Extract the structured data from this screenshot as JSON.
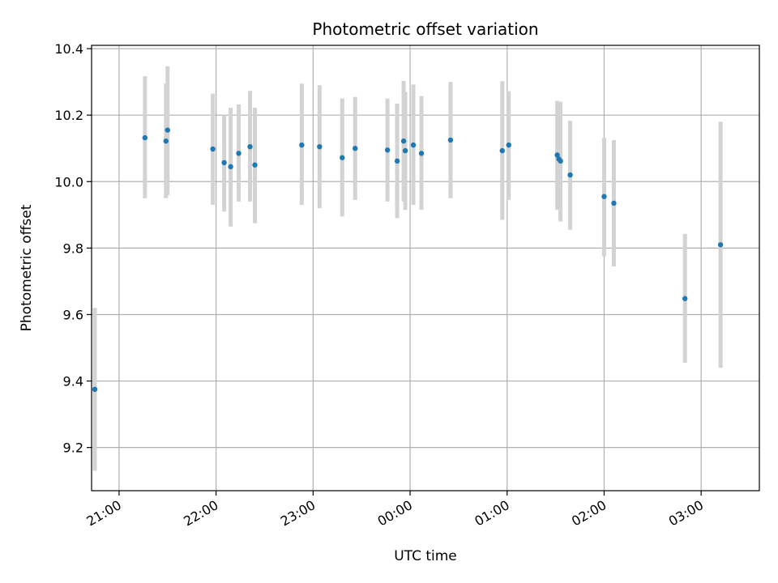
{
  "chart_data": {
    "type": "scatter",
    "title": "Photometric offset variation",
    "xlabel": "UTC time",
    "ylabel": "Photometric offset",
    "xlim": [
      "20:43",
      "03:36"
    ],
    "ylim": [
      9.07,
      10.41
    ],
    "xticks": [
      "21:00",
      "22:00",
      "23:00",
      "00:00",
      "01:00",
      "02:00",
      "03:00"
    ],
    "yticks": [
      9.2,
      9.4,
      9.6,
      9.8,
      10.0,
      10.2,
      10.4
    ],
    "yticks_labels": [
      "9.2",
      "9.4",
      "9.6",
      "9.8",
      "10.0",
      "10.2",
      "10.4"
    ],
    "grid": true,
    "marker_color": "#1f77b4",
    "errorbar_color": "#d3d3d3",
    "points": [
      {
        "x": "20:45",
        "y": 9.375,
        "low": 9.13,
        "high": 9.62
      },
      {
        "x": "21:16",
        "y": 10.132,
        "low": 9.95,
        "high": 10.317
      },
      {
        "x": "21:29",
        "y": 10.122,
        "low": 9.95,
        "high": 10.295
      },
      {
        "x": "21:30",
        "y": 10.155,
        "low": 9.96,
        "high": 10.347
      },
      {
        "x": "21:58",
        "y": 10.098,
        "low": 9.93,
        "high": 10.265
      },
      {
        "x": "22:05",
        "y": 10.057,
        "low": 9.91,
        "high": 10.2
      },
      {
        "x": "22:09",
        "y": 10.045,
        "low": 9.865,
        "high": 10.222
      },
      {
        "x": "22:14",
        "y": 10.085,
        "low": 9.94,
        "high": 10.232
      },
      {
        "x": "22:21",
        "y": 10.105,
        "low": 9.94,
        "high": 10.273
      },
      {
        "x": "22:24",
        "y": 10.05,
        "low": 9.875,
        "high": 10.222
      },
      {
        "x": "22:53",
        "y": 10.11,
        "low": 9.93,
        "high": 10.295
      },
      {
        "x": "23:04",
        "y": 10.105,
        "low": 9.92,
        "high": 10.29
      },
      {
        "x": "23:18",
        "y": 10.072,
        "low": 9.895,
        "high": 10.25
      },
      {
        "x": "23:26",
        "y": 10.1,
        "low": 9.945,
        "high": 10.255
      },
      {
        "x": "23:46",
        "y": 10.095,
        "low": 9.94,
        "high": 10.25
      },
      {
        "x": "23:52",
        "y": 10.062,
        "low": 9.89,
        "high": 10.235
      },
      {
        "x": "23:56",
        "y": 10.122,
        "low": 9.94,
        "high": 10.303
      },
      {
        "x": "23:57",
        "y": 10.093,
        "low": 9.915,
        "high": 10.27
      },
      {
        "x": "00:02",
        "y": 10.11,
        "low": 9.93,
        "high": 10.292
      },
      {
        "x": "00:07",
        "y": 10.085,
        "low": 9.915,
        "high": 10.257
      },
      {
        "x": "00:25",
        "y": 10.125,
        "low": 9.95,
        "high": 10.3
      },
      {
        "x": "00:57",
        "y": 10.093,
        "low": 9.885,
        "high": 10.302
      },
      {
        "x": "01:01",
        "y": 10.11,
        "low": 9.945,
        "high": 10.272
      },
      {
        "x": "01:31",
        "y": 10.08,
        "low": 9.915,
        "high": 10.243
      },
      {
        "x": "01:32",
        "y": 10.068,
        "low": 9.915,
        "high": 10.24
      },
      {
        "x": "01:33",
        "y": 10.062,
        "low": 9.88,
        "high": 10.24
      },
      {
        "x": "01:39",
        "y": 10.02,
        "low": 9.855,
        "high": 10.183
      },
      {
        "x": "02:00",
        "y": 9.955,
        "low": 9.775,
        "high": 10.132
      },
      {
        "x": "02:06",
        "y": 9.935,
        "low": 9.745,
        "high": 10.125
      },
      {
        "x": "02:50",
        "y": 9.648,
        "low": 9.455,
        "high": 9.843
      },
      {
        "x": "03:12",
        "y": 9.81,
        "low": 9.44,
        "high": 10.18
      }
    ]
  }
}
